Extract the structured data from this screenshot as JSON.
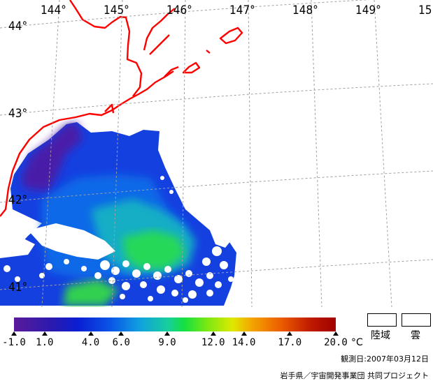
{
  "map": {
    "longitude_labels": [
      "144°",
      "145°",
      "146°",
      "147°",
      "148°",
      "149°",
      "15"
    ],
    "latitude_labels": [
      "44°",
      "43°",
      "42°",
      "41°"
    ],
    "colors": {
      "coastline": "#ff0000",
      "land": "#ffffff",
      "cloud": "#ffffff",
      "graticule": "#a0a0a0"
    }
  },
  "legend": {
    "tick_labels": [
      "-1.0",
      "1.0",
      "4.0",
      "6.0",
      "9.0",
      "12.0",
      "14.0",
      "17.0",
      "20.0"
    ],
    "tick_values": [
      -1.0,
      1.0,
      4.0,
      6.0,
      9.0,
      12.0,
      14.0,
      17.0,
      20.0
    ],
    "range": [
      -1.0,
      20.0
    ],
    "unit": "°C",
    "land_label": "陸域",
    "cloud_label": "雲"
  },
  "observation_date": "観測日:2007年03月12日",
  "credit": "岩手県／宇宙開発事業団 共同プロジェクト"
}
